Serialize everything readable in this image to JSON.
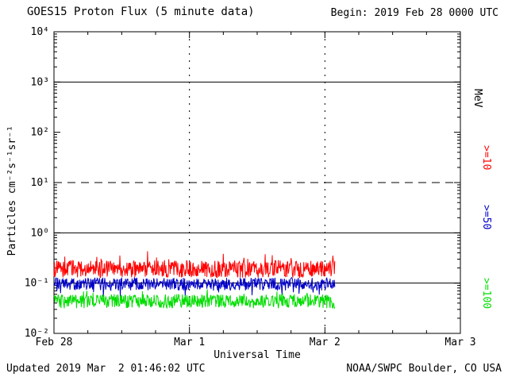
{
  "header": {
    "begin": "Begin: 2019 Feb 28 0000 UTC"
  },
  "footer": {
    "updated": "Updated 2019 Mar  2 01:46:02 UTC",
    "credit": "NOAA/SWPC Boulder, CO USA"
  },
  "chart_data": {
    "type": "line",
    "title": "GOES15 Proton Flux (5 minute data)",
    "xlabel": "Universal Time",
    "ylabel": "Particles cm⁻²s⁻¹sr⁻¹",
    "legend_title": "MeV",
    "x_start": "2019 Feb 28 0000 UTC",
    "x_range_days": 3,
    "x_tick_labels": [
      "Feb 28",
      "Mar 1",
      "Mar 2",
      "Mar 3"
    ],
    "y_scale": "log",
    "y_log_min": -2,
    "y_log_max": 4,
    "y_tick_labels": [
      "10⁴",
      "10³",
      "10²",
      "10¹",
      "10⁰",
      "10⁻¹",
      "10⁻²"
    ],
    "gridlines": {
      "solid_decades": [
        3,
        0,
        -1
      ],
      "dashed_decades": [
        1
      ],
      "vertical_dotted_days": [
        1,
        2
      ]
    },
    "sample_minutes": 5,
    "data_end_days": 2.074,
    "series": [
      {
        "name": ">=10",
        "color": "#ff0000",
        "approx_level_pfu": 0.2,
        "range_pfu": [
          0.12,
          0.45
        ],
        "base_log": -0.72,
        "noise_dex": 0.17,
        "spike_prob": 0.08,
        "spike_dex": 0.2,
        "spike_sign": 1,
        "clamp_log": [
          -0.95,
          -0.33
        ]
      },
      {
        "name": ">=50",
        "color": "#0000c8",
        "approx_level_pfu": 0.1,
        "range_pfu": [
          0.06,
          0.15
        ],
        "base_log": -1.02,
        "noise_dex": 0.13,
        "spike_prob": 0.05,
        "spike_dex": 0.2,
        "spike_sign": -1,
        "clamp_log": [
          -1.32,
          -0.82
        ]
      },
      {
        "name": ">=100",
        "color": "#00dd00",
        "approx_level_pfu": 0.05,
        "range_pfu": [
          0.03,
          0.08
        ],
        "base_log": -1.36,
        "noise_dex": 0.14,
        "spike_prob": 0.05,
        "spike_dex": 0.15,
        "spike_sign": 1,
        "clamp_log": [
          -1.56,
          -1.05
        ]
      }
    ]
  }
}
